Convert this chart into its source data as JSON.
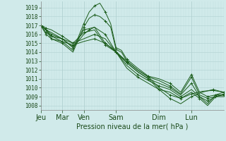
{
  "xlabel": "Pression niveau de la mer( hPa )",
  "bg_color": "#d0eaea",
  "plot_bg_color": "#d0eaea",
  "grid_color": "#b0d0d0",
  "minor_grid_color": "#c0dede",
  "line_color": "#1a5c1a",
  "ylim": [
    1007.5,
    1019.7
  ],
  "yticks": [
    1008,
    1009,
    1010,
    1011,
    1012,
    1013,
    1014,
    1015,
    1016,
    1017,
    1018,
    1019
  ],
  "day_labels": [
    "Jeu",
    "Mar",
    "Ven",
    "Sam",
    "Dim",
    "Lun"
  ],
  "day_positions": [
    0,
    16,
    32,
    56,
    88,
    112
  ],
  "xlim": [
    0,
    136
  ],
  "series": [
    [
      0,
      1017,
      2,
      1016.9,
      4,
      1016.7,
      8,
      1016.5,
      16,
      1015.8,
      24,
      1015.0,
      32,
      1016.2,
      40,
      1016.5,
      48,
      1014.8,
      56,
      1014.0,
      64,
      1013.0,
      72,
      1012.0,
      80,
      1011.2,
      88,
      1010.0,
      96,
      1009.2,
      104,
      1008.8,
      112,
      1009.3,
      120,
      1009.6,
      128,
      1009.7,
      136,
      1009.5
    ],
    [
      0,
      1017,
      2,
      1016.8,
      4,
      1016.5,
      8,
      1016.2,
      16,
      1015.5,
      24,
      1014.6,
      32,
      1016.5,
      40,
      1016.8,
      48,
      1015.0,
      56,
      1014.1,
      64,
      1012.8,
      72,
      1011.8,
      80,
      1011.0,
      88,
      1009.8,
      96,
      1008.8,
      104,
      1008.2,
      112,
      1009.0,
      120,
      1009.5,
      128,
      1009.8,
      136,
      1009.5
    ],
    [
      0,
      1017,
      2,
      1016.6,
      4,
      1016.2,
      8,
      1015.8,
      16,
      1015.2,
      24,
      1014.2,
      32,
      1017.2,
      36,
      1018.5,
      40,
      1019.2,
      44,
      1019.5,
      48,
      1018.5,
      52,
      1017.2,
      56,
      1014.5,
      60,
      1014.2,
      64,
      1013.2,
      72,
      1012.2,
      80,
      1011.3,
      88,
      1011.0,
      96,
      1010.5,
      104,
      1009.5,
      112,
      1011.5,
      118,
      1009.5,
      124,
      1009.0,
      130,
      1009.2,
      136,
      1009.5
    ],
    [
      0,
      1017,
      2,
      1016.5,
      4,
      1016.0,
      8,
      1015.5,
      16,
      1015.0,
      24,
      1014.0,
      32,
      1016.8,
      36,
      1017.8,
      40,
      1018.2,
      44,
      1018.0,
      48,
      1017.5,
      52,
      1016.8,
      56,
      1014.3,
      60,
      1014.0,
      64,
      1013.0,
      72,
      1012.0,
      80,
      1011.2,
      88,
      1010.8,
      96,
      1010.2,
      104,
      1009.3,
      112,
      1011.2,
      118,
      1009.2,
      124,
      1008.8,
      130,
      1009.0,
      136,
      1009.3
    ],
    [
      0,
      1017,
      4,
      1016.5,
      8,
      1016.0,
      16,
      1015.5,
      24,
      1014.5,
      32,
      1016.0,
      36,
      1016.5,
      40,
      1016.8,
      48,
      1016.0,
      56,
      1014.0,
      64,
      1012.8,
      72,
      1011.8,
      80,
      1011.0,
      88,
      1010.5,
      96,
      1010.0,
      104,
      1009.2,
      112,
      1010.5,
      118,
      1009.0,
      124,
      1008.5,
      130,
      1009.0,
      136,
      1009.2
    ],
    [
      0,
      1017,
      4,
      1016.5,
      8,
      1015.8,
      16,
      1015.5,
      24,
      1015.0,
      32,
      1015.5,
      40,
      1016.0,
      48,
      1015.5,
      56,
      1014.0,
      64,
      1012.5,
      72,
      1011.5,
      80,
      1010.8,
      88,
      1010.2,
      96,
      1009.8,
      104,
      1009.0,
      112,
      1009.8,
      118,
      1009.0,
      124,
      1008.2,
      130,
      1009.2,
      136,
      1009.2
    ],
    [
      0,
      1017,
      4,
      1016.5,
      8,
      1015.5,
      16,
      1015.2,
      24,
      1014.8,
      32,
      1015.2,
      40,
      1015.5,
      48,
      1015.0,
      56,
      1014.0,
      64,
      1012.2,
      72,
      1011.2,
      80,
      1010.5,
      88,
      1009.8,
      96,
      1009.5,
      104,
      1008.8,
      112,
      1009.5,
      118,
      1008.8,
      124,
      1008.0,
      130,
      1009.0,
      136,
      1009.0
    ]
  ]
}
